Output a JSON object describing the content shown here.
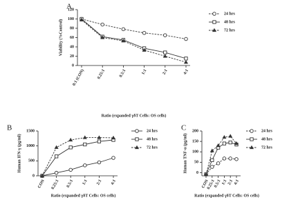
{
  "chart_data": [
    {
      "type": "line",
      "label": "A",
      "x_label": "Ratio (expanded γδT Cells: OS cells)",
      "y_label": "Viability (%Control)",
      "categories": [
        "0:1 (CON)",
        "0.25:1",
        "0.5:1",
        "1:1",
        "2:1",
        "4:1"
      ],
      "ylim": [
        0,
        120
      ],
      "yticks": [
        0,
        20,
        40,
        60,
        80,
        100,
        120
      ],
      "series": [
        {
          "name": "24 hrs",
          "color": "#333333",
          "marker": "circle",
          "line_style": "dashed",
          "values": [
            100,
            88,
            78,
            70,
            65,
            57
          ]
        },
        {
          "name": "48 hrs",
          "color": "#333333",
          "marker": "square",
          "line_style": "solid",
          "values": [
            100,
            62,
            55,
            37,
            28,
            15
          ]
        },
        {
          "name": "72 hrs",
          "color": "#333333",
          "marker": "triangle",
          "line_style": "dashed",
          "values": [
            98,
            60,
            53,
            33,
            20,
            7
          ]
        }
      ]
    },
    {
      "type": "line",
      "label": "B",
      "x_label": "Ratio (expanded γδT Cells: OS cells)",
      "y_label": "Human IFN-γ (pg/ml)",
      "categories": [
        "CON",
        "0.25:1",
        "0.5:1",
        "1:1",
        "2:1",
        "4:1"
      ],
      "ylim": [
        0,
        1500
      ],
      "yticks": [
        0,
        500,
        1000,
        1500
      ],
      "series": [
        {
          "name": "24 hrs",
          "color": "#333333",
          "marker": "circle",
          "line_style": "solid",
          "values": [
            0,
            100,
            200,
            350,
            450,
            600
          ]
        },
        {
          "name": "48 hrs",
          "color": "#333333",
          "marker": "square",
          "line_style": "solid",
          "values": [
            0,
            650,
            950,
            1050,
            1150,
            1200
          ]
        },
        {
          "name": "72 hrs",
          "color": "#333333",
          "marker": "triangle",
          "line_style": "dashed",
          "values": [
            0,
            950,
            1200,
            1280,
            1280,
            1270
          ]
        }
      ]
    },
    {
      "type": "line",
      "label": "C",
      "x_label": "Ratio (expanded γδT Cells: OS cells)",
      "y_label": "Human TNF-α (pg/ml)",
      "categories": [
        "CON",
        "0.25:1",
        "0.5:1",
        "1:1",
        "2:1",
        "4:1"
      ],
      "ylim": [
        -15,
        200
      ],
      "yticks": [
        0,
        50,
        100,
        150,
        200
      ],
      "series": [
        {
          "name": "24 hrs",
          "color": "#333333",
          "marker": "circle",
          "line_style": "dashed",
          "values": [
            -8,
            28,
            45,
            68,
            68,
            65
          ]
        },
        {
          "name": "48 hrs",
          "color": "#333333",
          "marker": "square",
          "line_style": "solid",
          "values": [
            -8,
            60,
            120,
            140,
            145,
            135
          ]
        },
        {
          "name": "72 hrs",
          "color": "#333333",
          "marker": "triangle",
          "line_style": "dashed",
          "values": [
            -8,
            105,
            130,
            170,
            175,
            140
          ]
        }
      ]
    }
  ]
}
